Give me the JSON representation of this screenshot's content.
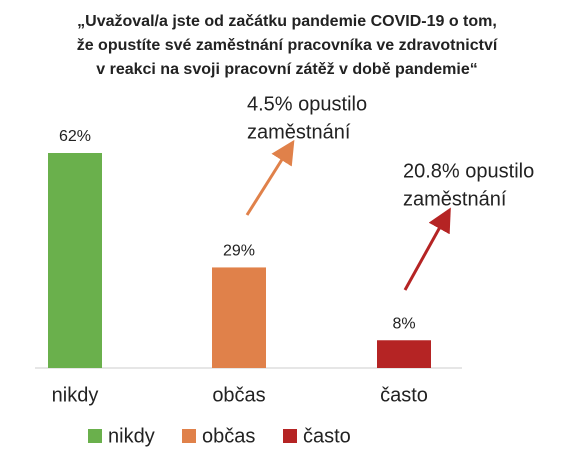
{
  "chart_data": {
    "type": "bar",
    "title": [
      "„Uvažoval/a jste od začátku pandemie COVID-19 o tom,",
      "že opustíte své zaměstnání pracovníka ve zdravotnictví",
      "v reakci na svoji pracovní zátěž v době pandemie“"
    ],
    "categories": [
      "nikdy",
      "občas",
      "často"
    ],
    "values": [
      62,
      29,
      8
    ],
    "value_labels": [
      "62%",
      "29%",
      "8%"
    ],
    "colors": [
      "#6ab04c",
      "#e0814a",
      "#b52424"
    ],
    "annotations": [
      {
        "text": [
          "4.5% opustilo",
          "zaměstnání"
        ],
        "color": "#e0814a"
      },
      {
        "text": [
          "20.8% opustilo",
          "zaměstnání"
        ],
        "color": "#b52424"
      }
    ]
  }
}
